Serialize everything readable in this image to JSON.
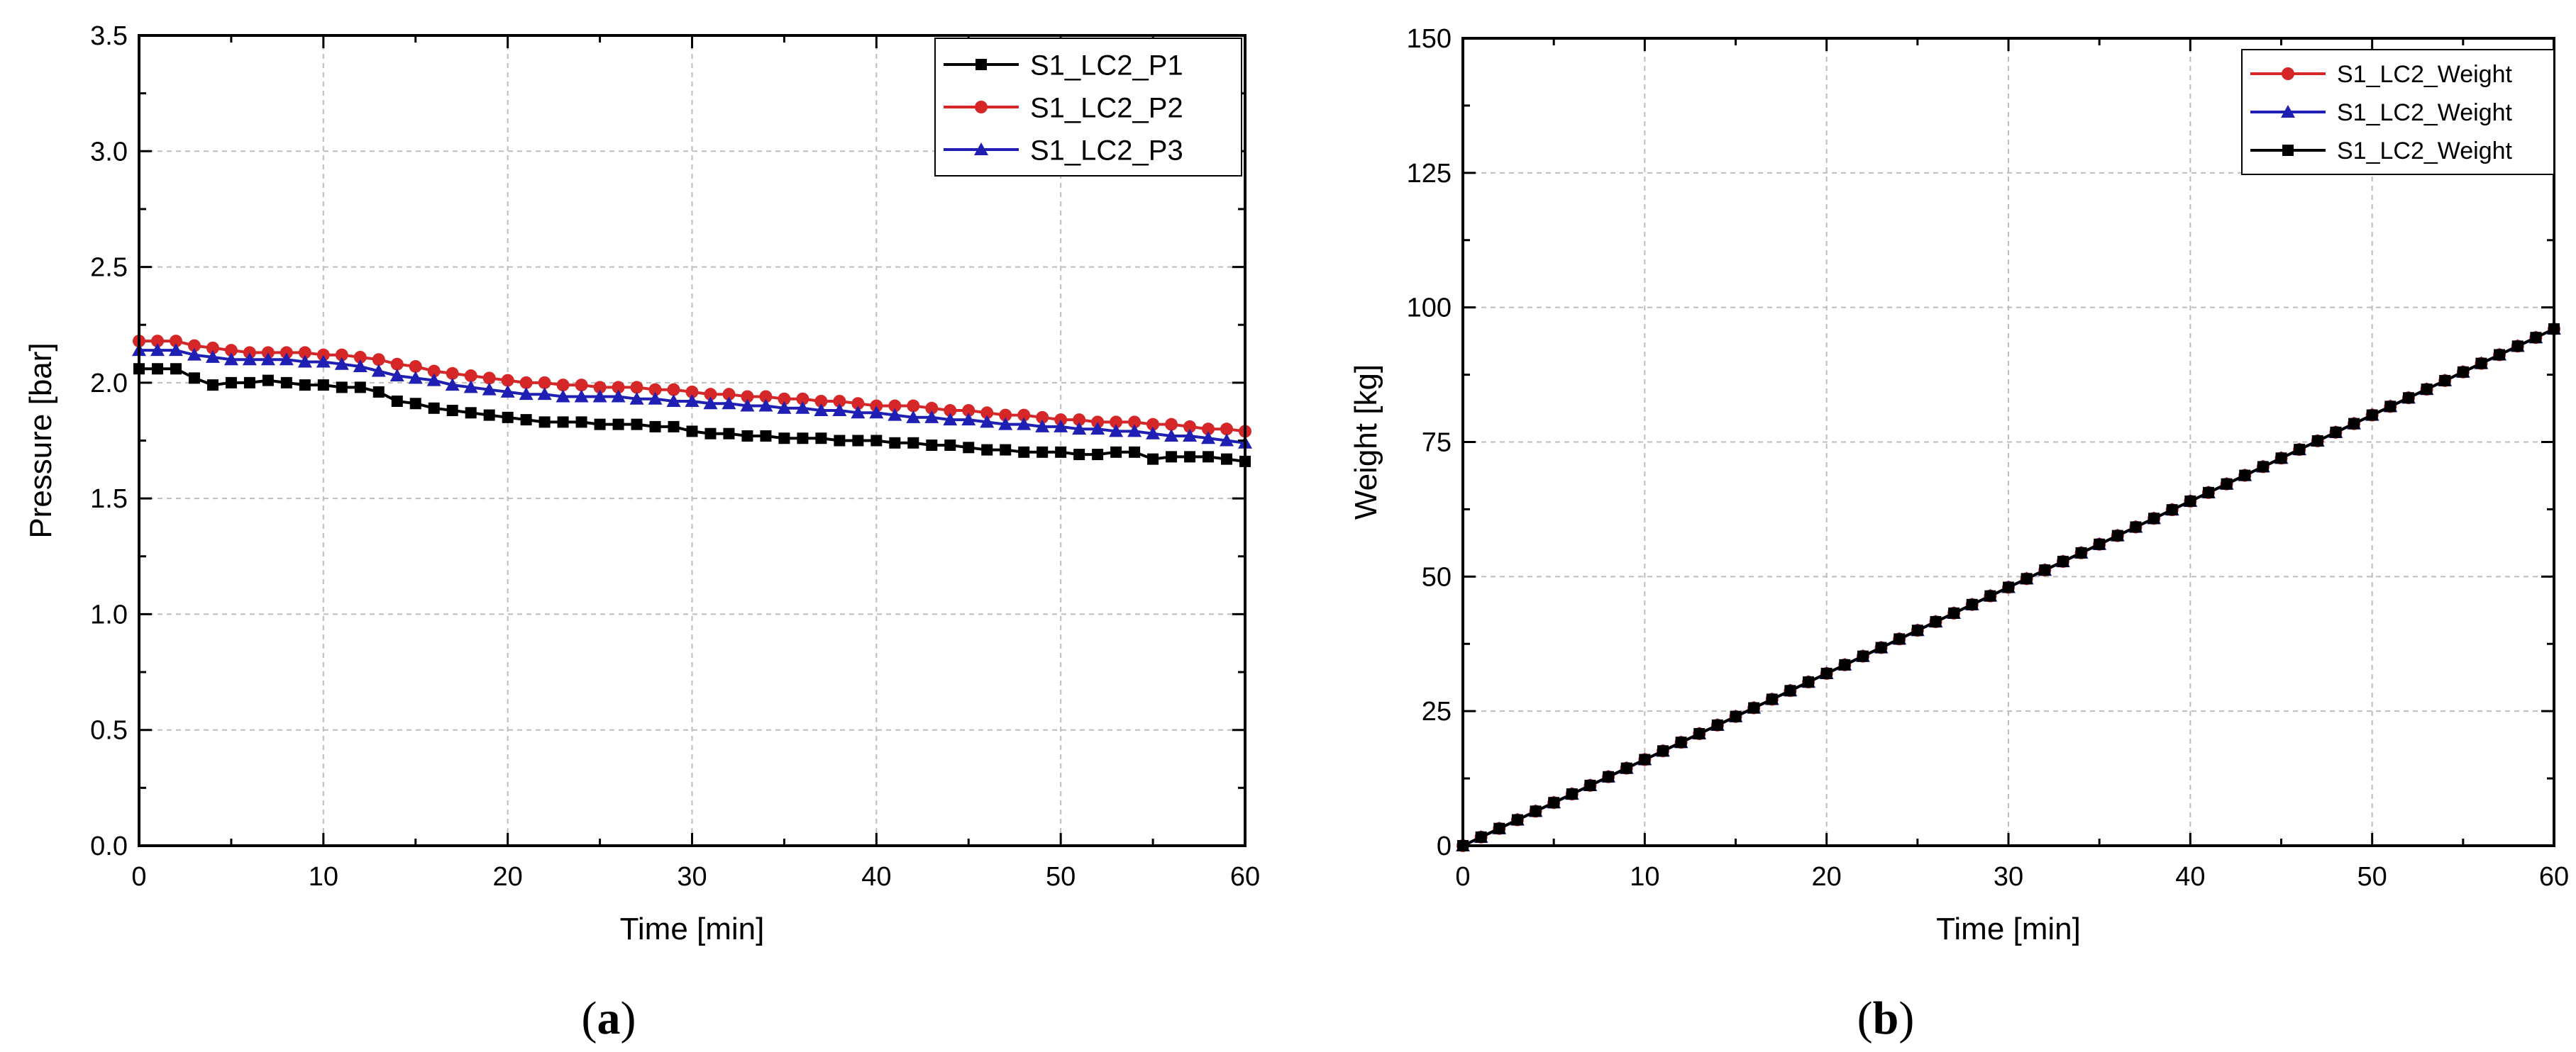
{
  "figure": {
    "panels": [
      {
        "letter": "a",
        "caption_open": "(",
        "caption_close": ")"
      },
      {
        "letter": "b",
        "caption_open": "(",
        "caption_close": ")"
      }
    ]
  },
  "chart_data": [
    {
      "type": "line",
      "xlabel": "Time [min]",
      "ylabel": "Pressure [bar]",
      "xlim": [
        0,
        60
      ],
      "ylim": [
        0,
        3.5
      ],
      "xticks": [
        "0",
        "10",
        "20",
        "30",
        "40",
        "50",
        "60"
      ],
      "yticks": [
        "0.0",
        "0.5",
        "1.0",
        "1.5",
        "2.0",
        "2.5",
        "3.0",
        "3.5"
      ],
      "grid": true,
      "legend_position": "top-right",
      "x": [
        0,
        1,
        2,
        3,
        4,
        5,
        6,
        7,
        8,
        9,
        10,
        11,
        12,
        13,
        14,
        15,
        16,
        17,
        18,
        19,
        20,
        21,
        22,
        23,
        24,
        25,
        26,
        27,
        28,
        29,
        30,
        31,
        32,
        33,
        34,
        35,
        36,
        37,
        38,
        39,
        40,
        41,
        42,
        43,
        44,
        45,
        46,
        47,
        48,
        49,
        50,
        51,
        52,
        53,
        54,
        55,
        56,
        57,
        58,
        59,
        60
      ],
      "series": [
        {
          "name": "S1_LC2_P1",
          "color": "#000000",
          "marker": "square",
          "values": [
            2.06,
            2.06,
            2.06,
            2.02,
            1.99,
            2.0,
            2.0,
            2.01,
            2.0,
            1.99,
            1.99,
            1.98,
            1.98,
            1.96,
            1.92,
            1.91,
            1.89,
            1.88,
            1.87,
            1.86,
            1.85,
            1.84,
            1.83,
            1.83,
            1.83,
            1.82,
            1.82,
            1.82,
            1.81,
            1.81,
            1.79,
            1.78,
            1.78,
            1.77,
            1.77,
            1.76,
            1.76,
            1.76,
            1.75,
            1.75,
            1.75,
            1.74,
            1.74,
            1.73,
            1.73,
            1.72,
            1.71,
            1.71,
            1.7,
            1.7,
            1.7,
            1.69,
            1.69,
            1.7,
            1.7,
            1.67,
            1.68,
            1.68,
            1.68,
            1.67,
            1.66
          ]
        },
        {
          "name": "S1_LC2_P2",
          "color": "#d62728",
          "marker": "circle",
          "values": [
            2.18,
            2.18,
            2.18,
            2.16,
            2.15,
            2.14,
            2.13,
            2.13,
            2.13,
            2.13,
            2.12,
            2.12,
            2.11,
            2.1,
            2.08,
            2.07,
            2.05,
            2.04,
            2.03,
            2.02,
            2.01,
            2.0,
            2.0,
            1.99,
            1.99,
            1.98,
            1.98,
            1.98,
            1.97,
            1.97,
            1.96,
            1.95,
            1.95,
            1.94,
            1.94,
            1.93,
            1.93,
            1.92,
            1.92,
            1.91,
            1.9,
            1.9,
            1.9,
            1.89,
            1.88,
            1.88,
            1.87,
            1.86,
            1.86,
            1.85,
            1.84,
            1.84,
            1.83,
            1.83,
            1.83,
            1.82,
            1.82,
            1.81,
            1.8,
            1.8,
            1.79
          ]
        },
        {
          "name": "S1_LC2_P3",
          "color": "#1f1fb4",
          "marker": "triangle",
          "values": [
            2.14,
            2.14,
            2.14,
            2.12,
            2.11,
            2.1,
            2.1,
            2.1,
            2.1,
            2.09,
            2.09,
            2.08,
            2.07,
            2.05,
            2.03,
            2.02,
            2.01,
            1.99,
            1.98,
            1.97,
            1.96,
            1.95,
            1.95,
            1.94,
            1.94,
            1.94,
            1.94,
            1.93,
            1.93,
            1.92,
            1.92,
            1.91,
            1.91,
            1.9,
            1.9,
            1.89,
            1.89,
            1.88,
            1.88,
            1.87,
            1.87,
            1.86,
            1.85,
            1.85,
            1.84,
            1.84,
            1.83,
            1.82,
            1.82,
            1.81,
            1.81,
            1.8,
            1.8,
            1.79,
            1.79,
            1.78,
            1.77,
            1.77,
            1.76,
            1.75,
            1.74
          ]
        }
      ]
    },
    {
      "type": "line",
      "xlabel": "Time [min]",
      "ylabel": "Weight [kg]",
      "xlim": [
        0,
        60
      ],
      "ylim": [
        0,
        150
      ],
      "xticks": [
        "0",
        "10",
        "20",
        "30",
        "40",
        "50",
        "60"
      ],
      "yticks": [
        "0",
        "25",
        "50",
        "75",
        "100",
        "125",
        "150"
      ],
      "grid": true,
      "legend_position": "top-right",
      "x": [
        0,
        1,
        2,
        3,
        4,
        5,
        6,
        7,
        8,
        9,
        10,
        11,
        12,
        13,
        14,
        15,
        16,
        17,
        18,
        19,
        20,
        21,
        22,
        23,
        24,
        25,
        26,
        27,
        28,
        29,
        30,
        31,
        32,
        33,
        34,
        35,
        36,
        37,
        38,
        39,
        40,
        41,
        42,
        43,
        44,
        45,
        46,
        47,
        48,
        49,
        50,
        51,
        52,
        53,
        54,
        55,
        56,
        57,
        58,
        59,
        60
      ],
      "series": [
        {
          "name": "S1_LC2_Weight",
          "color": "#d62728",
          "marker": "circle",
          "values": [
            0,
            1.6,
            3.2,
            4.8,
            6.4,
            8.0,
            9.6,
            11.2,
            12.8,
            14.4,
            16.0,
            17.6,
            19.2,
            20.8,
            22.4,
            24.0,
            25.6,
            27.2,
            28.8,
            30.4,
            32.0,
            33.6,
            35.2,
            36.8,
            38.4,
            40.0,
            41.6,
            43.2,
            44.8,
            46.4,
            48.0,
            49.6,
            51.2,
            52.8,
            54.4,
            56.0,
            57.6,
            59.2,
            60.8,
            62.4,
            64.0,
            65.6,
            67.2,
            68.8,
            70.4,
            72.0,
            73.6,
            75.2,
            76.8,
            78.4,
            80.0,
            81.6,
            83.2,
            84.8,
            86.4,
            88.0,
            89.6,
            91.2,
            92.8,
            94.4,
            96.0
          ]
        },
        {
          "name": "S1_LC2_Weight",
          "color": "#1f1fb4",
          "marker": "triangle",
          "values": [
            0,
            1.6,
            3.2,
            4.8,
            6.4,
            8.0,
            9.6,
            11.2,
            12.8,
            14.4,
            16.0,
            17.6,
            19.2,
            20.8,
            22.4,
            24.0,
            25.6,
            27.2,
            28.8,
            30.4,
            32.0,
            33.6,
            35.2,
            36.8,
            38.4,
            40.0,
            41.6,
            43.2,
            44.8,
            46.4,
            48.0,
            49.6,
            51.2,
            52.8,
            54.4,
            56.0,
            57.6,
            59.2,
            60.8,
            62.4,
            64.0,
            65.6,
            67.2,
            68.8,
            70.4,
            72.0,
            73.6,
            75.2,
            76.8,
            78.4,
            80.0,
            81.6,
            83.2,
            84.8,
            86.4,
            88.0,
            89.6,
            91.2,
            92.8,
            94.4,
            96.0
          ]
        },
        {
          "name": "S1_LC2_Weight",
          "color": "#000000",
          "marker": "square",
          "values": [
            0,
            1.6,
            3.2,
            4.8,
            6.4,
            8.0,
            9.6,
            11.2,
            12.8,
            14.4,
            16.0,
            17.6,
            19.2,
            20.8,
            22.4,
            24.0,
            25.6,
            27.2,
            28.8,
            30.4,
            32.0,
            33.6,
            35.2,
            36.8,
            38.4,
            40.0,
            41.6,
            43.2,
            44.8,
            46.4,
            48.0,
            49.6,
            51.2,
            52.8,
            54.4,
            56.0,
            57.6,
            59.2,
            60.8,
            62.4,
            64.0,
            65.6,
            67.2,
            68.8,
            70.4,
            72.0,
            73.6,
            75.2,
            76.8,
            78.4,
            80.0,
            81.6,
            83.2,
            84.8,
            86.4,
            88.0,
            89.6,
            91.2,
            92.8,
            94.4,
            96.0
          ]
        }
      ]
    }
  ]
}
